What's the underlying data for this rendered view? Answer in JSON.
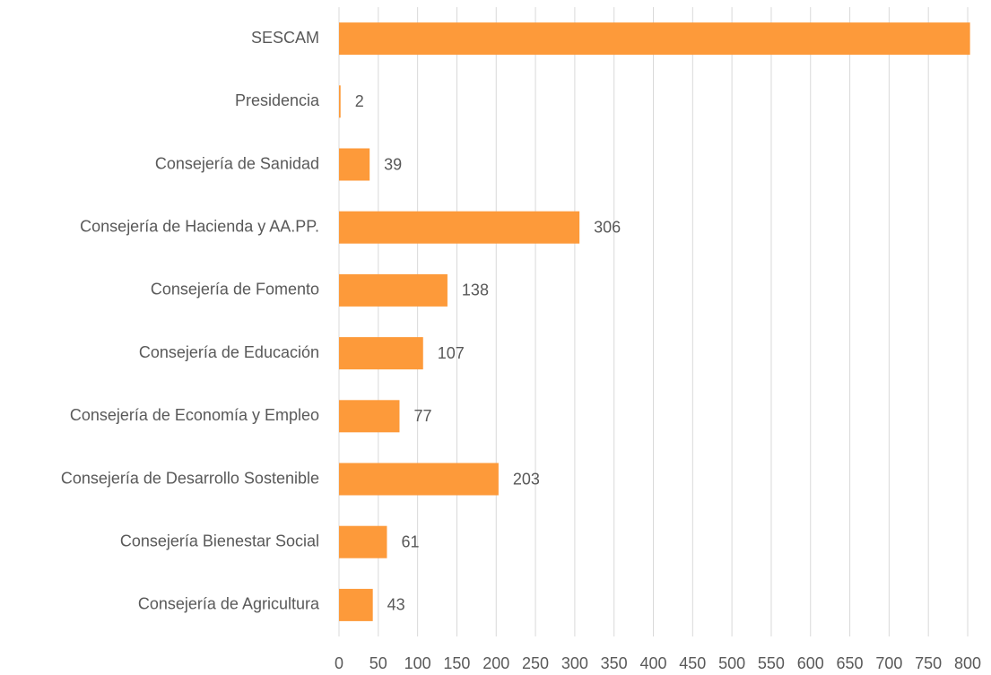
{
  "chart_data": {
    "type": "hbar",
    "categories": [
      "SESCAM",
      "Presidencia",
      "Consejería de Sanidad",
      "Consejería de Hacienda y AA.PP.",
      "Consejería de Fomento",
      "Consejería de Educación",
      "Consejería de Economía y Empleo",
      "Consejería de Desarrollo Sostenible",
      "Consejería Bienestar Social",
      "Consejería de Agricultura"
    ],
    "values": [
      803,
      2,
      39,
      306,
      138,
      107,
      77,
      203,
      61,
      43
    ],
    "value_labels": [
      null,
      "2",
      "39",
      "306",
      "138",
      "107",
      "77",
      "203",
      "61",
      "43"
    ],
    "color": "#fd9a3a",
    "xlim": [
      0,
      800
    ],
    "xticks": [
      0,
      50,
      100,
      150,
      200,
      250,
      300,
      350,
      400,
      450,
      500,
      550,
      600,
      650,
      700,
      750,
      800
    ],
    "grid": true
  }
}
